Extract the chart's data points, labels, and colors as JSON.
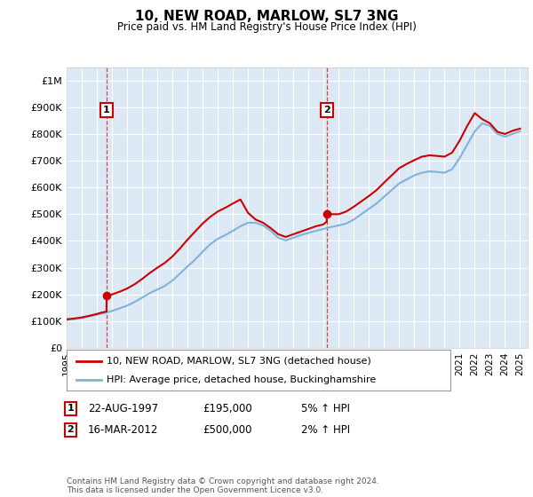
{
  "title": "10, NEW ROAD, MARLOW, SL7 3NG",
  "subtitle": "Price paid vs. HM Land Registry's House Price Index (HPI)",
  "property_label": "10, NEW ROAD, MARLOW, SL7 3NG (detached house)",
  "hpi_label": "HPI: Average price, detached house, Buckinghamshire",
  "sale1_date": "22-AUG-1997",
  "sale1_price": 195000,
  "sale1_hpi": "5% ↑ HPI",
  "sale2_date": "16-MAR-2012",
  "sale2_price": 500000,
  "sale2_hpi": "2% ↑ HPI",
  "footnote": "Contains HM Land Registry data © Crown copyright and database right 2024.\nThis data is licensed under the Open Government Licence v3.0.",
  "bg_color": "#dce9f5",
  "line_color_property": "#cc0000",
  "line_color_hpi": "#7fb3d8",
  "ylim": [
    0,
    1050000
  ],
  "yticks": [
    0,
    100000,
    200000,
    300000,
    400000,
    500000,
    600000,
    700000,
    800000,
    900000,
    1000000
  ],
  "ytick_labels": [
    "£0",
    "£100K",
    "£200K",
    "£300K",
    "£400K",
    "£500K",
    "£600K",
    "£700K",
    "£800K",
    "£900K",
    "£1M"
  ],
  "sale1_x": 1997.64,
  "sale2_x": 2012.21,
  "hpi_x": [
    1995.0,
    1995.5,
    1996.0,
    1996.5,
    1997.0,
    1997.5,
    1998.0,
    1998.5,
    1999.0,
    1999.5,
    2000.0,
    2000.5,
    2001.0,
    2001.5,
    2002.0,
    2002.5,
    2003.0,
    2003.5,
    2004.0,
    2004.5,
    2005.0,
    2005.5,
    2006.0,
    2006.5,
    2007.0,
    2007.5,
    2008.0,
    2008.5,
    2009.0,
    2009.5,
    2010.0,
    2010.5,
    2011.0,
    2011.5,
    2012.0,
    2012.5,
    2013.0,
    2013.5,
    2014.0,
    2014.5,
    2015.0,
    2015.5,
    2016.0,
    2016.5,
    2017.0,
    2017.5,
    2018.0,
    2018.5,
    2019.0,
    2019.5,
    2020.0,
    2020.5,
    2021.0,
    2021.5,
    2022.0,
    2022.5,
    2023.0,
    2023.5,
    2024.0,
    2024.5,
    2025.0
  ],
  "hpi_y": [
    105000,
    108000,
    112000,
    118000,
    124000,
    130000,
    138000,
    148000,
    158000,
    172000,
    188000,
    205000,
    218000,
    232000,
    252000,
    278000,
    305000,
    330000,
    360000,
    388000,
    408000,
    422000,
    438000,
    455000,
    468000,
    468000,
    458000,
    438000,
    412000,
    402000,
    412000,
    422000,
    430000,
    438000,
    445000,
    452000,
    458000,
    465000,
    480000,
    500000,
    520000,
    540000,
    565000,
    590000,
    615000,
    630000,
    645000,
    655000,
    660000,
    658000,
    655000,
    668000,
    710000,
    760000,
    810000,
    840000,
    830000,
    800000,
    790000,
    800000,
    810000
  ],
  "prop_x": [
    1995.0,
    1995.5,
    1996.0,
    1996.5,
    1997.0,
    1997.3,
    1997.64,
    1997.64,
    1998.0,
    1998.5,
    1999.0,
    1999.5,
    2000.0,
    2000.5,
    2001.0,
    2001.5,
    2002.0,
    2002.5,
    2003.0,
    2003.5,
    2004.0,
    2004.5,
    2005.0,
    2005.5,
    2006.0,
    2006.5,
    2007.0,
    2007.5,
    2008.0,
    2008.5,
    2009.0,
    2009.5,
    2010.0,
    2010.5,
    2011.0,
    2011.5,
    2012.0,
    2012.1,
    2012.21,
    2012.21,
    2013.0,
    2013.5,
    2014.0,
    2014.5,
    2015.0,
    2015.5,
    2016.0,
    2016.5,
    2017.0,
    2017.5,
    2018.0,
    2018.5,
    2019.0,
    2019.5,
    2020.0,
    2020.5,
    2021.0,
    2021.5,
    2022.0,
    2022.5,
    2023.0,
    2023.5,
    2024.0,
    2024.5,
    2025.0
  ],
  "prop_y": [
    107000,
    110000,
    114000,
    120000,
    127000,
    132000,
    136000,
    195000,
    200000,
    210000,
    222000,
    238000,
    258000,
    280000,
    300000,
    318000,
    342000,
    372000,
    405000,
    435000,
    465000,
    490000,
    510000,
    524000,
    540000,
    555000,
    505000,
    480000,
    468000,
    448000,
    425000,
    415000,
    425000,
    435000,
    445000,
    455000,
    462000,
    468000,
    472000,
    500000,
    500000,
    510000,
    528000,
    548000,
    568000,
    590000,
    618000,
    645000,
    672000,
    688000,
    702000,
    715000,
    720000,
    718000,
    715000,
    730000,
    775000,
    830000,
    878000,
    855000,
    840000,
    808000,
    800000,
    812000,
    820000
  ],
  "xlim": [
    1995,
    2025.5
  ],
  "xticks": [
    1995,
    1996,
    1997,
    1998,
    1999,
    2000,
    2001,
    2002,
    2003,
    2004,
    2005,
    2006,
    2007,
    2008,
    2009,
    2010,
    2011,
    2012,
    2013,
    2014,
    2015,
    2016,
    2017,
    2018,
    2019,
    2020,
    2021,
    2022,
    2023,
    2024,
    2025
  ]
}
